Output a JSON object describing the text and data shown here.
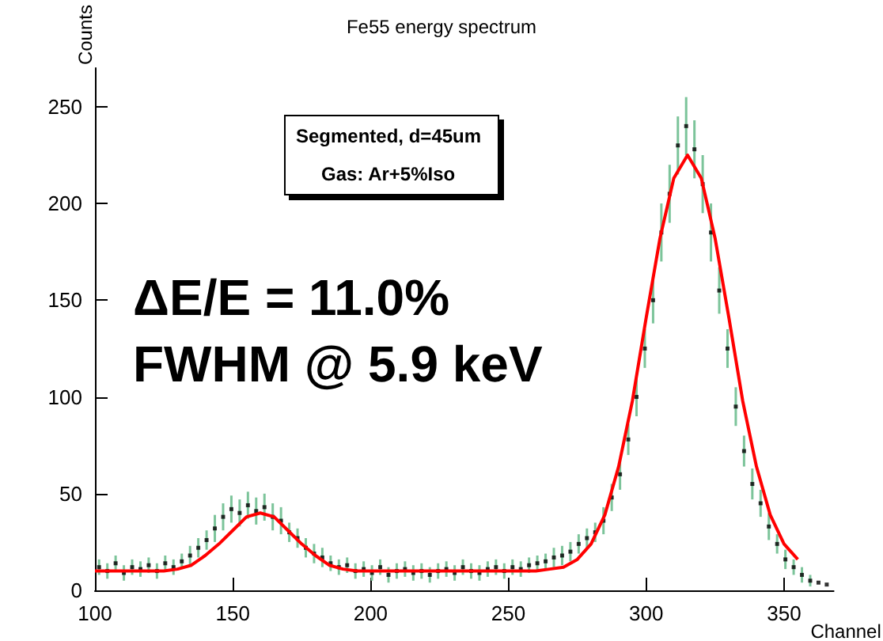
{
  "chart_data": {
    "type": "scatter",
    "title": "Fe55 energy spectrum",
    "xlabel": "Channel",
    "ylabel": "Counts",
    "annotations": [
      "Segmented, d=45um",
      "Gas: Ar+5%Iso",
      "ΔE/E = 11.0%",
      "FWHM @ 5.9 keV"
    ],
    "series": [
      {
        "color": "#000000",
        "x": [
          101.5,
          104.5,
          107.5,
          110.5,
          113.5,
          116.5,
          119.5,
          122.5,
          125.5,
          128.5,
          131.5,
          134.5,
          137.5,
          140.5,
          143.5,
          146.5,
          149.5,
          152.5,
          155.5,
          158.5,
          161.5,
          164.5,
          167.5,
          170.5,
          173.5,
          176.5,
          179.5,
          182.5,
          185.5,
          188.5,
          191.5,
          194.5,
          197.5,
          200.5,
          203.5,
          206.5,
          209.5,
          212.5,
          215.5,
          218.5,
          221.5,
          224.5,
          227.5,
          230.5,
          233.5,
          236.5,
          239.5,
          242.5,
          245.5,
          248.5,
          251.5,
          254.5,
          257.5,
          260.5,
          263.5,
          266.5,
          269.5,
          272.5,
          275.5,
          278.5,
          281.5,
          284.5,
          287.5,
          290.5,
          293.5,
          296.5,
          299.5,
          302.5,
          305.5,
          308.5,
          311.5,
          314.5,
          317.5,
          320.5,
          323.5,
          326.5,
          329.5,
          332.5,
          335.5,
          338.5,
          341.5,
          344.5,
          347.5,
          350.5,
          353.5,
          356.5,
          359.5,
          362.5,
          365.5
        ],
        "values": [
          12,
          10,
          14,
          9,
          12,
          11,
          13,
          10,
          14,
          12,
          15,
          18,
          22,
          26,
          32,
          38,
          42,
          40,
          44,
          41,
          43,
          38,
          36,
          30,
          27,
          22,
          19,
          17,
          14,
          12,
          13,
          10,
          11,
          9,
          12,
          8,
          10,
          11,
          9,
          10,
          8,
          10,
          11,
          9,
          12,
          10,
          9,
          11,
          12,
          10,
          12,
          11,
          13,
          14,
          15,
          17,
          18,
          20,
          24,
          27,
          30,
          36,
          48,
          60,
          78,
          100,
          125,
          150,
          185,
          205,
          230,
          240,
          228,
          210,
          185,
          155,
          125,
          95,
          72,
          55,
          45,
          33,
          24,
          16,
          12,
          8,
          5,
          4,
          3
        ],
        "errors": [
          4,
          4,
          4,
          4,
          4,
          4,
          4,
          4,
          4,
          4,
          4,
          5,
          5,
          5,
          7,
          7,
          7,
          7,
          7,
          7,
          7,
          7,
          7,
          5,
          5,
          5,
          5,
          5,
          4,
          4,
          4,
          4,
          4,
          4,
          4,
          4,
          4,
          4,
          4,
          4,
          4,
          4,
          4,
          4,
          4,
          4,
          4,
          4,
          4,
          4,
          4,
          4,
          4,
          4,
          4,
          5,
          5,
          5,
          5,
          5,
          5,
          7,
          7,
          8,
          8,
          10,
          10,
          12,
          15,
          15,
          15,
          15,
          15,
          15,
          15,
          12,
          10,
          10,
          8,
          8,
          7,
          7,
          5,
          5,
          4,
          4,
          3,
          null,
          null
        ]
      },
      {
        "type": "line",
        "marker": "none",
        "color": "#ff0000",
        "x": [
          100,
          105,
          110,
          115,
          120,
          125,
          130,
          135,
          140,
          145,
          150,
          155,
          160,
          165,
          170,
          175,
          180,
          185,
          190,
          195,
          200,
          210,
          220,
          230,
          240,
          250,
          260,
          265,
          270,
          275,
          280,
          285,
          290,
          295,
          300,
          305,
          310,
          315,
          320,
          325,
          330,
          335,
          340,
          345,
          350,
          355
        ],
        "values": [
          10,
          10,
          10,
          10,
          10,
          10,
          11,
          13,
          18,
          24,
          31,
          38,
          40,
          38,
          31,
          24,
          18,
          13,
          11,
          10,
          10,
          10,
          10,
          10,
          10,
          10,
          10,
          11,
          12,
          16,
          24,
          39,
          64,
          98,
          141,
          182,
          213,
          225,
          213,
          182,
          141,
          98,
          64,
          39,
          24,
          16
        ]
      }
    ],
    "xlim": [
      100,
      368
    ],
    "xticks": [
      100,
      150,
      200,
      250,
      300,
      350
    ],
    "ylim": [
      0,
      270
    ],
    "yticks": [
      0,
      50,
      100,
      150,
      200,
      250
    ],
    "grid": false,
    "marker": "square",
    "line_style": "solid"
  }
}
